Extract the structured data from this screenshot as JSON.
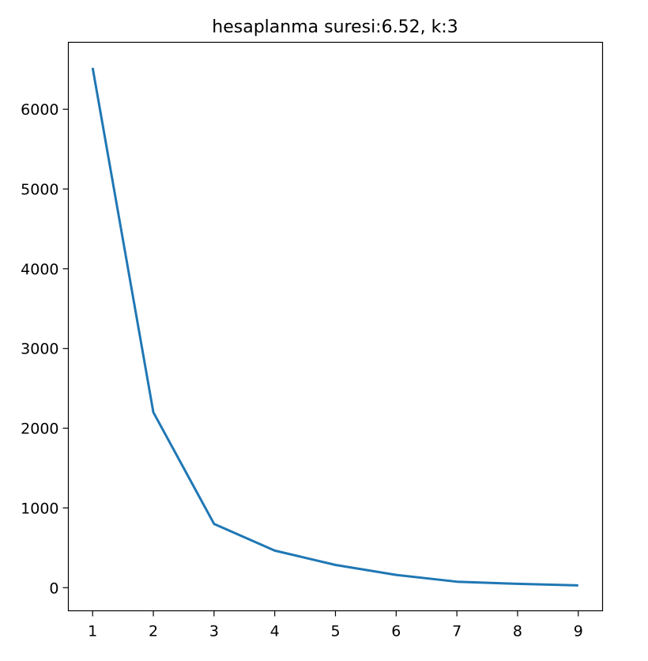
{
  "chart_data": {
    "type": "line",
    "title": "hesaplanma suresi:6.52, k:3",
    "xlabel": "",
    "ylabel": "",
    "x": [
      1,
      2,
      3,
      4,
      5,
      6,
      7,
      8,
      9
    ],
    "series": [
      {
        "values": [
          6520,
          2200,
          800,
          465,
          285,
          160,
          75,
          48,
          28
        ],
        "color": "#1f77b4"
      }
    ],
    "xticks": [
      "1",
      "2",
      "3",
      "4",
      "5",
      "6",
      "7",
      "8",
      "9"
    ],
    "yticks": [
      "0",
      "1000",
      "2000",
      "3000",
      "4000",
      "5000",
      "6000"
    ],
    "xlim": [
      0.6,
      9.4
    ],
    "ylim": [
      -290,
      6840
    ],
    "grid": false,
    "legend": "none"
  }
}
